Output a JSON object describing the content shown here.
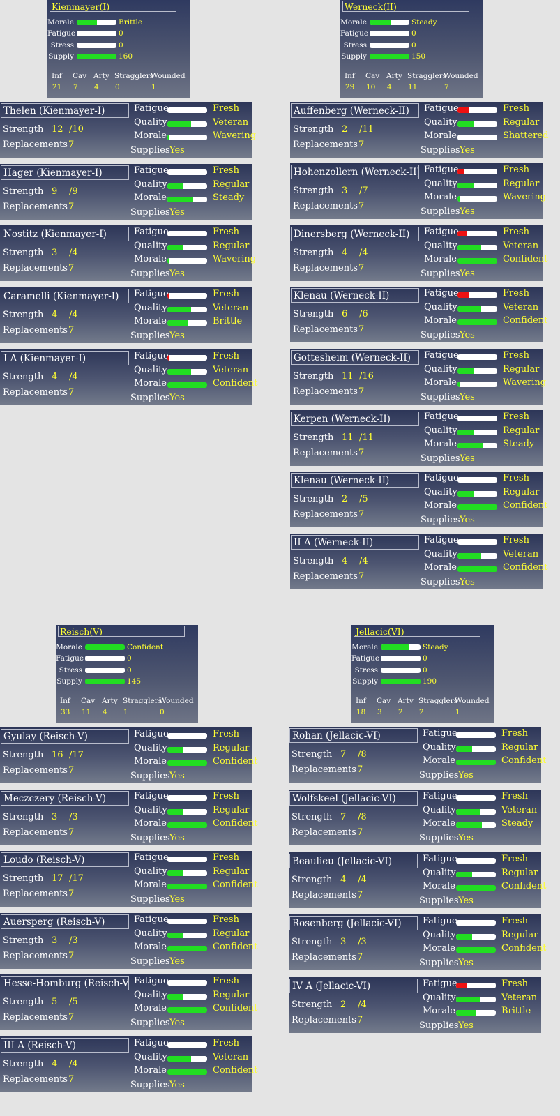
{
  "colors": {
    "good": "#22dd22",
    "bad": "#ee1111",
    "label": "#ffffff",
    "value": "#ffff33"
  },
  "labels": {
    "morale": "Morale",
    "fatigue": "Fatigue",
    "stress": "Stress",
    "supply": "Supply",
    "quality": "Quality",
    "strength": "Strength",
    "replacements": "Replacements",
    "supplies": "Supplies",
    "inf": "Inf",
    "cav": "Cav",
    "arty": "Arty",
    "stragglers": "Stragglers",
    "wounded": "Wounded"
  },
  "corps": [
    {
      "name": "Kienmayer(I)",
      "morale": {
        "text": "Brittle",
        "level": 0.5
      },
      "fatigue": {
        "text": "0",
        "level": 0
      },
      "stress": {
        "text": "0",
        "level": 0
      },
      "supply": {
        "text": "160",
        "level": 1
      },
      "inf": "21",
      "cav": "7",
      "arty": "4",
      "stragglers": "0",
      "wounded": "1",
      "units": [
        {
          "name": "Thelen (Kienmayer-I)",
          "strength": "12",
          "max": "/10",
          "replacements": "7",
          "fatigue": "Fresh",
          "fatigue_level": 0,
          "quality": "Veteran",
          "quality_level": 0.6,
          "morale": "Wavering",
          "morale_level": 0.05,
          "supplies": "Yes"
        },
        {
          "name": "Hager (Kienmayer-I)",
          "strength": "9",
          "max": "/9",
          "replacements": "7",
          "fatigue": "Fresh",
          "fatigue_level": 0,
          "quality": "Regular",
          "quality_level": 0.4,
          "morale": "Steady",
          "morale_level": 0.65,
          "supplies": "Yes"
        },
        {
          "name": "Nostitz (Kienmayer-I)",
          "strength": "3",
          "max": "/4",
          "replacements": "7",
          "fatigue": "Fresh",
          "fatigue_level": 0,
          "quality": "Regular",
          "quality_level": 0.4,
          "morale": "Wavering",
          "morale_level": 0.05,
          "supplies": "Yes"
        },
        {
          "name": "Caramelli (Kienmayer-I)",
          "strength": "4",
          "max": "/4",
          "replacements": "7",
          "fatigue": "Fresh",
          "fatigue_level": 0.06,
          "quality": "Veteran",
          "quality_level": 0.6,
          "morale": "Brittle",
          "morale_level": 0.5,
          "supplies": "Yes"
        },
        {
          "name": "I A (Kienmayer-I)",
          "strength": "4",
          "max": "/4",
          "replacements": "7",
          "fatigue": "Fresh",
          "fatigue_level": 0.06,
          "quality": "Veteran",
          "quality_level": 0.6,
          "morale": "Confident",
          "morale_level": 1,
          "supplies": "Yes"
        }
      ]
    },
    {
      "name": "Werneck(II)",
      "morale": {
        "text": "Steady",
        "level": 0.55
      },
      "fatigue": {
        "text": "0",
        "level": 0
      },
      "stress": {
        "text": "0",
        "level": 0
      },
      "supply": {
        "text": "150",
        "level": 1
      },
      "inf": "29",
      "cav": "10",
      "arty": "4",
      "stragglers": "11",
      "wounded": "7",
      "units": [
        {
          "name": "Auffenberg (Werneck-II)",
          "strength": "2",
          "max": "/11",
          "replacements": "7",
          "fatigue": "Fresh",
          "fatigue_level": 0.3,
          "quality": "Regular",
          "quality_level": 0.4,
          "morale": "Shattered",
          "morale_level": 0,
          "supplies": "Yes"
        },
        {
          "name": "Hohenzollern (Werneck-II)",
          "strength": "3",
          "max": "/7",
          "replacements": "7",
          "fatigue": "Fresh",
          "fatigue_level": 0.18,
          "quality": "Regular",
          "quality_level": 0.4,
          "morale": "Wavering",
          "morale_level": 0.05,
          "supplies": "Yes"
        },
        {
          "name": "Dinersberg (Werneck-II)",
          "strength": "4",
          "max": "/4",
          "replacements": "7",
          "fatigue": "Fresh",
          "fatigue_level": 0.22,
          "quality": "Veteran",
          "quality_level": 0.6,
          "morale": "Confident",
          "morale_level": 1,
          "supplies": "Yes"
        },
        {
          "name": "Klenau (Werneck-II)",
          "strength": "6",
          "max": "/6",
          "replacements": "7",
          "fatigue": "Fresh",
          "fatigue_level": 0.3,
          "quality": "Veteran",
          "quality_level": 0.6,
          "morale": "Confident",
          "morale_level": 1,
          "supplies": "Yes"
        },
        {
          "name": "Gottesheim (Werneck-II)",
          "strength": "11",
          "max": "/16",
          "replacements": "7",
          "fatigue": "Fresh",
          "fatigue_level": 0,
          "quality": "Regular",
          "quality_level": 0.4,
          "morale": "Wavering",
          "morale_level": 0.05,
          "supplies": "Yes"
        },
        {
          "name": "Kerpen (Werneck-II)",
          "strength": "11",
          "max": "/11",
          "replacements": "7",
          "fatigue": "Fresh",
          "fatigue_level": 0,
          "quality": "Regular",
          "quality_level": 0.4,
          "morale": "Steady",
          "morale_level": 0.65,
          "supplies": "Yes"
        },
        {
          "name": "Klenau (Werneck-II)",
          "strength": "2",
          "max": "/5",
          "replacements": "7",
          "fatigue": "Fresh",
          "fatigue_level": 0,
          "quality": "Regular",
          "quality_level": 0.4,
          "morale": "Confident",
          "morale_level": 1,
          "supplies": "Yes"
        },
        {
          "name": "II A (Werneck-II)",
          "strength": "4",
          "max": "/4",
          "replacements": "7",
          "fatigue": "Fresh",
          "fatigue_level": 0,
          "quality": "Veteran",
          "quality_level": 0.6,
          "morale": "Confident",
          "morale_level": 1,
          "supplies": "Yes"
        }
      ]
    },
    {
      "name": "Reisch(V)",
      "morale": {
        "text": "Confident",
        "level": 1
      },
      "fatigue": {
        "text": "0",
        "level": 0
      },
      "stress": {
        "text": "0",
        "level": 0
      },
      "supply": {
        "text": "145",
        "level": 1
      },
      "inf": "33",
      "cav": "11",
      "arty": "4",
      "stragglers": "1",
      "wounded": "0",
      "units": [
        {
          "name": "Gyulay (Reisch-V)",
          "strength": "16",
          "max": "/17",
          "replacements": "7",
          "fatigue": "Fresh",
          "fatigue_level": 0,
          "quality": "Regular",
          "quality_level": 0.4,
          "morale": "Confident",
          "morale_level": 1,
          "supplies": "Yes"
        },
        {
          "name": "Meczczery (Reisch-V)",
          "strength": "3",
          "max": "/3",
          "replacements": "7",
          "fatigue": "Fresh",
          "fatigue_level": 0,
          "quality": "Regular",
          "quality_level": 0.4,
          "morale": "Confident",
          "morale_level": 1,
          "supplies": "Yes"
        },
        {
          "name": "Loudo (Reisch-V)",
          "strength": "17",
          "max": "/17",
          "replacements": "7",
          "fatigue": "Fresh",
          "fatigue_level": 0,
          "quality": "Regular",
          "quality_level": 0.4,
          "morale": "Confident",
          "morale_level": 1,
          "supplies": "Yes"
        },
        {
          "name": "Auersperg (Reisch-V)",
          "strength": "3",
          "max": "/3",
          "replacements": "7",
          "fatigue": "Fresh",
          "fatigue_level": 0,
          "quality": "Regular",
          "quality_level": 0.4,
          "morale": "Confident",
          "morale_level": 1,
          "supplies": "Yes"
        },
        {
          "name": "Hesse-Homburg (Reisch-V)",
          "strength": "5",
          "max": "/5",
          "replacements": "7",
          "fatigue": "Fresh",
          "fatigue_level": 0,
          "quality": "Regular",
          "quality_level": 0.4,
          "morale": "Confident",
          "morale_level": 1,
          "supplies": "Yes"
        },
        {
          "name": "III A (Reisch-V)",
          "strength": "4",
          "max": "/4",
          "replacements": "7",
          "fatigue": "Fresh",
          "fatigue_level": 0,
          "quality": "Veteran",
          "quality_level": 0.6,
          "morale": "Confident",
          "morale_level": 1,
          "supplies": "Yes"
        }
      ]
    },
    {
      "name": "Jellacic(VI)",
      "morale": {
        "text": "Steady",
        "level": 0.7
      },
      "fatigue": {
        "text": "0",
        "level": 0
      },
      "stress": {
        "text": "0",
        "level": 0
      },
      "supply": {
        "text": "190",
        "level": 1
      },
      "inf": "18",
      "cav": "3",
      "arty": "2",
      "stragglers": "2",
      "wounded": "1",
      "units": [
        {
          "name": "Rohan (Jellacic-VI)",
          "strength": "7",
          "max": "/8",
          "replacements": "7",
          "fatigue": "Fresh",
          "fatigue_level": 0,
          "quality": "Regular",
          "quality_level": 0.4,
          "morale": "Confident",
          "morale_level": 1,
          "supplies": "Yes"
        },
        {
          "name": "Wolfskeel (Jellacic-VI)",
          "strength": "7",
          "max": "/8",
          "replacements": "7",
          "fatigue": "Fresh",
          "fatigue_level": 0,
          "quality": "Veteran",
          "quality_level": 0.6,
          "morale": "Steady",
          "morale_level": 0.65,
          "supplies": "Yes"
        },
        {
          "name": "Beaulieu (Jellacic-VI)",
          "strength": "4",
          "max": "/4",
          "replacements": "7",
          "fatigue": "Fresh",
          "fatigue_level": 0,
          "quality": "Regular",
          "quality_level": 0.4,
          "morale": "Confident",
          "morale_level": 1,
          "supplies": "Yes"
        },
        {
          "name": "Rosenberg (Jellacic-VI)",
          "strength": "3",
          "max": "/3",
          "replacements": "7",
          "fatigue": "Fresh",
          "fatigue_level": 0,
          "quality": "Regular",
          "quality_level": 0.4,
          "morale": "Confident",
          "morale_level": 1,
          "supplies": "Yes"
        },
        {
          "name": "IV A (Jellacic-VI)",
          "strength": "2",
          "max": "/4",
          "replacements": "7",
          "fatigue": "Fresh",
          "fatigue_level": 0.28,
          "quality": "Veteran",
          "quality_level": 0.6,
          "morale": "Brittle",
          "morale_level": 0.5,
          "supplies": "Yes"
        }
      ]
    }
  ]
}
